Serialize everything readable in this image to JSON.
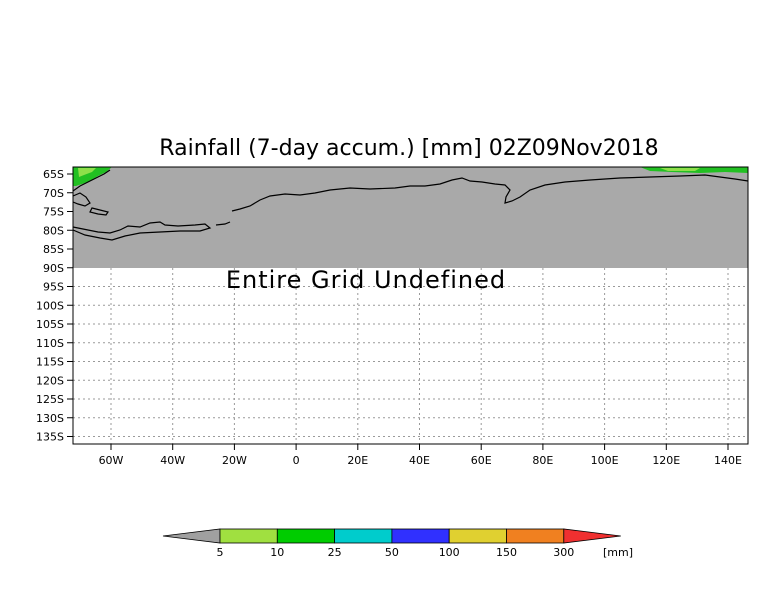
{
  "title": "Rainfall (7-day accum.) [mm] 02Z09Nov2018",
  "message": "Entire Grid Undefined",
  "lat_labels": [
    "65S",
    "70S",
    "75S",
    "80S",
    "85S",
    "90S",
    "95S",
    "100S",
    "105S",
    "110S",
    "115S",
    "120S",
    "125S",
    "130S",
    "135S"
  ],
  "lon_labels": [
    "60W",
    "40W",
    "20W",
    "0",
    "20E",
    "40E",
    "60E",
    "80E",
    "100E",
    "120E",
    "140E"
  ],
  "colors": {
    "land_undefined": "#a9a9a9",
    "coast": "#000000",
    "grid": "#9a9a9a"
  },
  "colorbar": {
    "unit": "[mm]",
    "labels": [
      "5",
      "10",
      "25",
      "50",
      "100",
      "150",
      "300"
    ],
    "colors": [
      "#a0a0a0",
      "#a0e040",
      "#00cc00",
      "#00cccc",
      "#3030ff",
      "#e0d030",
      "#f08020",
      "#f03030"
    ]
  }
}
